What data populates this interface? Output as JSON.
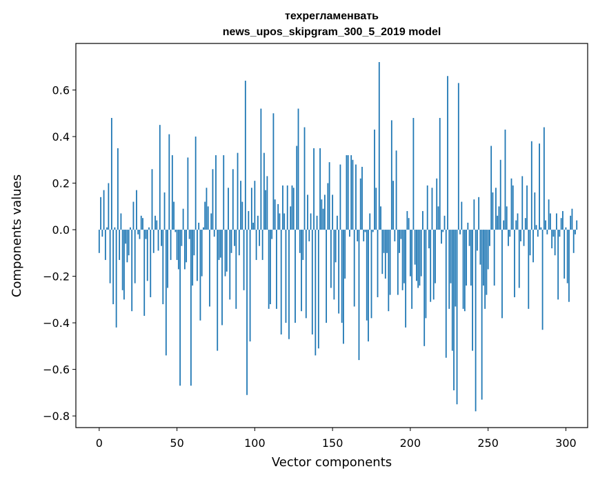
{
  "chart_data": {
    "type": "bar",
    "title_line1": "техрегламенвать",
    "title_line2": "news_upos_skipgram_300_5_2019 model",
    "xlabel": "Vector components",
    "ylabel": "Components values",
    "xlim": [
      -15,
      314
    ],
    "ylim": [
      -0.85,
      0.8
    ],
    "xticks": [
      0,
      50,
      100,
      150,
      200,
      250,
      300
    ],
    "xtick_labels": [
      "0",
      "50",
      "100",
      "150",
      "200",
      "250",
      "300"
    ],
    "yticks": [
      -0.8,
      -0.6,
      -0.4,
      -0.2,
      0.0,
      0.2,
      0.4,
      0.6
    ],
    "ytick_labels": [
      "−0.8",
      "−0.6",
      "−0.4",
      "−0.2",
      "0.0",
      "0.2",
      "0.4",
      "0.6"
    ],
    "color": "#1f77b4",
    "values": [
      -0.1,
      0.14,
      -0.03,
      0.17,
      -0.13,
      0.01,
      0.2,
      -0.23,
      0.48,
      -0.32,
      0.01,
      -0.42,
      0.35,
      -0.13,
      0.07,
      -0.26,
      -0.3,
      -0.06,
      -0.14,
      -0.11,
      0.01,
      -0.35,
      0.12,
      -0.23,
      0.17,
      -0.02,
      -0.04,
      0.06,
      0.05,
      -0.37,
      -0.04,
      -0.22,
      0.01,
      -0.29,
      0.26,
      -0.1,
      0.06,
      0.04,
      -0.09,
      0.45,
      -0.07,
      -0.32,
      0.16,
      -0.54,
      -0.25,
      0.41,
      -0.13,
      0.32,
      0.12,
      -0.01,
      -0.13,
      -0.17,
      -0.67,
      -0.07,
      0.09,
      -0.17,
      -0.14,
      0.31,
      -0.04,
      -0.67,
      -0.24,
      -0.11,
      0.4,
      -0.22,
      0.03,
      -0.39,
      -0.2,
      0.01,
      0.12,
      0.18,
      0.1,
      -0.33,
      0.07,
      0.26,
      -0.03,
      0.32,
      -0.52,
      -0.13,
      -0.12,
      -0.41,
      0.32,
      -0.2,
      -0.18,
      0.18,
      -0.3,
      -0.1,
      0.26,
      -0.07,
      -0.34,
      0.33,
      -0.11,
      0.21,
      0.12,
      -0.26,
      0.64,
      -0.71,
      0.08,
      -0.48,
      0.18,
      0.03,
      0.21,
      -0.13,
      0.06,
      -0.07,
      0.52,
      -0.13,
      0.33,
      0.17,
      0.23,
      -0.34,
      -0.32,
      -0.04,
      0.5,
      0.13,
      -0.34,
      0.11,
      0.07,
      -0.45,
      0.19,
      0.07,
      -0.4,
      0.19,
      -0.47,
      0.1,
      0.19,
      0.18,
      -0.4,
      0.36,
      0.52,
      -0.1,
      -0.35,
      -0.13,
      0.44,
      -0.38,
      0.15,
      -0.05,
      0.07,
      -0.45,
      0.35,
      -0.54,
      0.06,
      -0.51,
      0.35,
      0.13,
      0.09,
      0.15,
      -0.4,
      0.2,
      0.29,
      -0.25,
      0.15,
      -0.3,
      -0.14,
      0.06,
      -0.36,
      0.28,
      -0.4,
      -0.49,
      -0.21,
      0.32,
      0.32,
      -0.03,
      0.32,
      0.3,
      -0.33,
      0.28,
      -0.05,
      -0.56,
      0.22,
      0.27,
      -0.05,
      -0.01,
      -0.39,
      -0.48,
      0.07,
      -0.38,
      -0.01,
      0.43,
      0.18,
      -0.29,
      0.72,
      0.1,
      -0.19,
      -0.1,
      -0.21,
      -0.1,
      -0.35,
      -0.28,
      0.47,
      0.21,
      -0.05,
      0.34,
      -0.28,
      -0.1,
      -0.04,
      -0.26,
      -0.23,
      -0.42,
      0.08,
      0.05,
      -0.2,
      -0.34,
      0.48,
      -0.15,
      -0.22,
      -0.25,
      -0.24,
      -0.2,
      0.08,
      -0.5,
      -0.38,
      0.19,
      -0.08,
      -0.31,
      0.18,
      -0.3,
      -0.23,
      0.22,
      0.1,
      0.48,
      -0.06,
      -0.01,
      0.06,
      -0.55,
      0.66,
      -0.34,
      -0.23,
      -0.52,
      -0.69,
      -0.33,
      -0.75,
      0.63,
      -0.02,
      0.12,
      -0.34,
      -0.35,
      -0.24,
      0.03,
      -0.07,
      -0.24,
      -0.52,
      0.13,
      -0.78,
      -0.09,
      0.14,
      -0.15,
      -0.73,
      -0.24,
      -0.34,
      -0.28,
      -0.17,
      -0.07,
      0.36,
      0.16,
      -0.24,
      0.18,
      0.06,
      0.1,
      0.3,
      -0.38,
      0.04,
      0.43,
      0.1,
      -0.07,
      -0.03,
      0.22,
      0.19,
      -0.29,
      0.04,
      0.07,
      -0.25,
      -0.05,
      0.23,
      -0.07,
      0.05,
      0.19,
      -0.34,
      -0.11,
      0.38,
      -0.14,
      0.16,
      0.02,
      -0.03,
      0.37,
      0.01,
      -0.43,
      0.44,
      0.04,
      -0.02,
      0.13,
      0.07,
      -0.08,
      -0.03,
      -0.11,
      0.07,
      -0.3,
      -0.03,
      0.05,
      0.08,
      -0.21,
      0.01,
      -0.23,
      -0.31,
      0.06,
      0.09,
      -0.1,
      -0.02,
      0.04
    ]
  }
}
